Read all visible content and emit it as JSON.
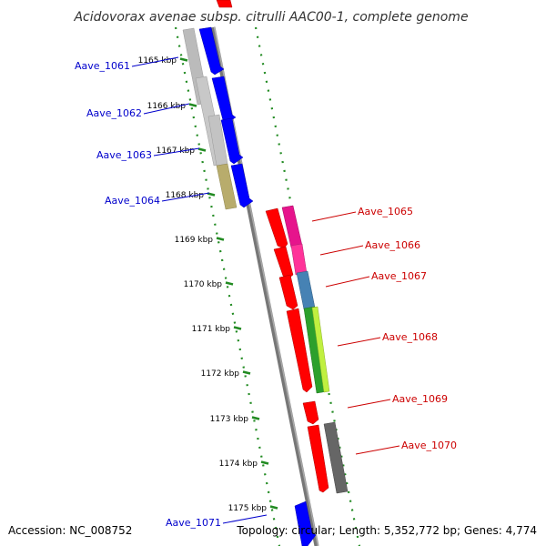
{
  "title": "Acidovorax avenae subsp. citrulli AAC00-1, complete genome",
  "footer": {
    "accession": "Accession: NC_008752",
    "topology": "Topology: circular; Length: 5,352,772 bp; Genes: 4,774"
  },
  "colors": {
    "forward_label": "#0000cc",
    "reverse_label": "#cc0000",
    "tick": "#228b22",
    "backbone": "#888888"
  },
  "ticks": [
    {
      "label": "1165 kbp"
    },
    {
      "label": "1166 kbp"
    },
    {
      "label": "1167 kbp"
    },
    {
      "label": "1168 kbp"
    },
    {
      "label": "1169 kbp"
    },
    {
      "label": "1170 kbp"
    },
    {
      "label": "1171 kbp"
    },
    {
      "label": "1172 kbp"
    },
    {
      "label": "1173 kbp"
    },
    {
      "label": "1174 kbp"
    },
    {
      "label": "1175 kbp"
    }
  ],
  "genes": [
    {
      "label": "Aave_1061",
      "strand": "forward"
    },
    {
      "label": "Aave_1062",
      "strand": "forward"
    },
    {
      "label": "Aave_1063",
      "strand": "forward"
    },
    {
      "label": "Aave_1064",
      "strand": "forward"
    },
    {
      "label": "Aave_1065",
      "strand": "reverse"
    },
    {
      "label": "Aave_1066",
      "strand": "reverse"
    },
    {
      "label": "Aave_1067",
      "strand": "reverse"
    },
    {
      "label": "Aave_1068",
      "strand": "reverse"
    },
    {
      "label": "Aave_1069",
      "strand": "reverse"
    },
    {
      "label": "Aave_1070",
      "strand": "reverse"
    },
    {
      "label": "Aave_1071",
      "strand": "forward"
    }
  ]
}
